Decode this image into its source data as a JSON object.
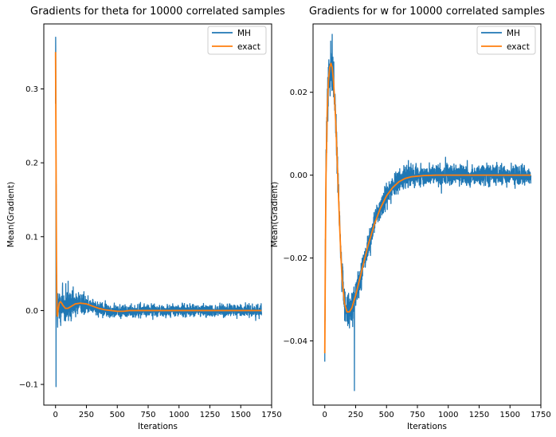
{
  "chart_data": [
    {
      "type": "line",
      "title": "Gradients for theta for 10000 correlated samples",
      "xlabel": "Iterations",
      "ylabel": "Mean(Gradient)",
      "xlim": [
        -95,
        1750
      ],
      "ylim": [
        -0.128,
        0.388
      ],
      "xticks": [
        0,
        250,
        500,
        750,
        1000,
        1250,
        1500,
        1750
      ],
      "xtick_labels": [
        "0",
        "250",
        "500",
        "750",
        "1000",
        "1250",
        "1500",
        "1750"
      ],
      "yticks": [
        -0.1,
        0.0,
        0.1,
        0.2,
        0.3
      ],
      "ytick_labels": [
        "−0.1",
        "0.0",
        "0.1",
        "0.2",
        "0.3"
      ],
      "legend_position": "top-right",
      "grid": false,
      "series": [
        {
          "name": "MH",
          "color": "#1f77b4",
          "n_points": 1670,
          "start": 0.37,
          "peak": 0.37,
          "trough": -0.103,
          "settle": 0.0,
          "settle_noise": 0.012,
          "early_noise": 0.055
        },
        {
          "name": "exact",
          "color": "#ff7f0e",
          "x": [
            0,
            3,
            6,
            9,
            12,
            15,
            20,
            30,
            40,
            50,
            60,
            80,
            100,
            130,
            160,
            200,
            250,
            300,
            350,
            400,
            450,
            500,
            550,
            600,
            700,
            800,
            1000,
            1300,
            1670
          ],
          "y": [
            0.35,
            0.25,
            0.12,
            0.03,
            -0.005,
            -0.009,
            0.0,
            0.01,
            0.012,
            0.01,
            0.007,
            0.003,
            0.003,
            0.006,
            0.009,
            0.01,
            0.009,
            0.006,
            0.003,
            0.001,
            0.0,
            -0.001,
            -0.001,
            0.0,
            0.0,
            0.0,
            0.0,
            0.0,
            0.0
          ]
        }
      ]
    },
    {
      "type": "line",
      "title": "Gradients for w for 10000 correlated samples",
      "xlabel": "Iterations",
      "ylabel": "Mean(Gradient)",
      "xlim": [
        -95,
        1750
      ],
      "ylim": [
        -0.0555,
        0.0365
      ],
      "xticks": [
        0,
        250,
        500,
        750,
        1000,
        1250,
        1500,
        1750
      ],
      "xtick_labels": [
        "0",
        "250",
        "500",
        "750",
        "1000",
        "1250",
        "1500",
        "1750"
      ],
      "yticks": [
        -0.04,
        -0.02,
        0.0,
        0.02
      ],
      "ytick_labels": [
        "−0.04",
        "−0.02",
        "0.00",
        "0.02"
      ],
      "legend_position": "top-right",
      "grid": false,
      "series": [
        {
          "name": "MH",
          "color": "#1f77b4",
          "n_points": 1670,
          "start": -0.045,
          "peak": 0.034,
          "trough": -0.052,
          "settle": 0.0,
          "settle_noise": 0.0035,
          "early_noise": 0.006
        },
        {
          "name": "exact",
          "color": "#ff7f0e",
          "x": [
            0,
            5,
            10,
            20,
            30,
            40,
            50,
            60,
            70,
            80,
            90,
            100,
            110,
            120,
            130,
            140,
            160,
            180,
            200,
            220,
            250,
            300,
            350,
            400,
            450,
            500,
            550,
            600,
            650,
            700,
            800,
            900,
            1000,
            1200,
            1400,
            1670
          ],
          "y": [
            -0.043,
            -0.018,
            0.0,
            0.016,
            0.023,
            0.026,
            0.027,
            0.026,
            0.023,
            0.018,
            0.012,
            0.004,
            -0.004,
            -0.012,
            -0.019,
            -0.025,
            -0.031,
            -0.033,
            -0.033,
            -0.032,
            -0.029,
            -0.023,
            -0.017,
            -0.012,
            -0.008,
            -0.005,
            -0.003,
            -0.0016,
            -0.0008,
            -0.0004,
            -0.0001,
            0.0,
            0.0,
            0.0,
            0.0,
            0.0
          ]
        }
      ]
    }
  ]
}
